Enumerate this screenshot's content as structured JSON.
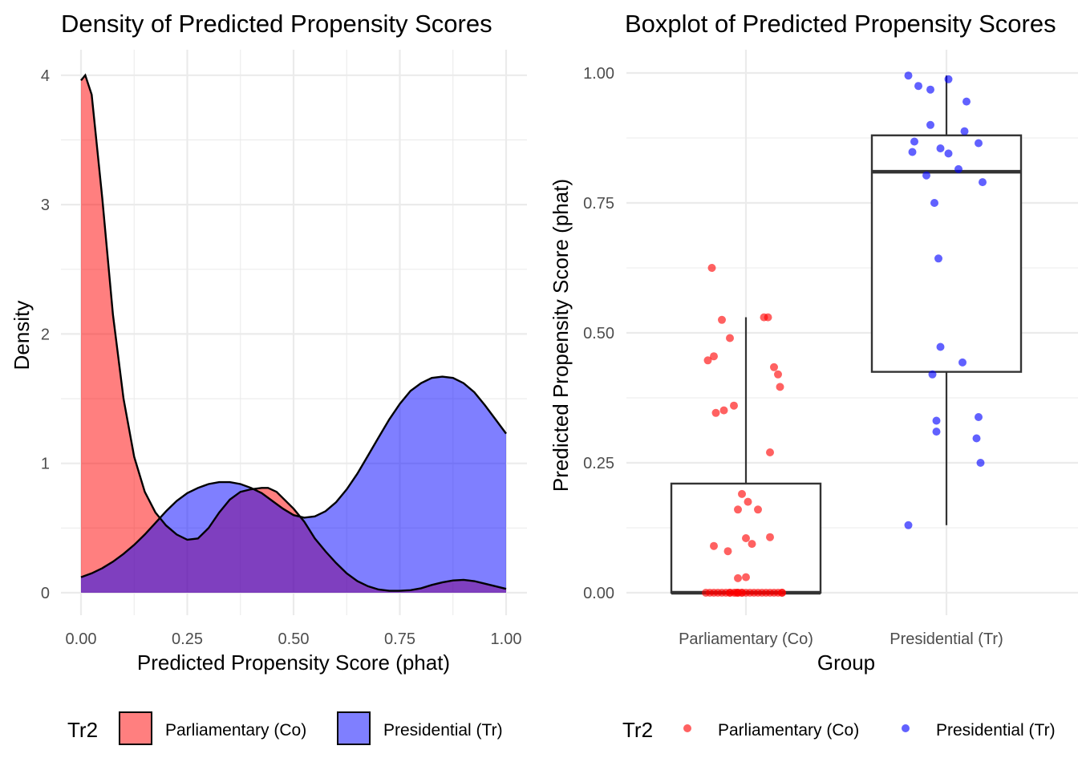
{
  "chart_data": [
    {
      "type": "area",
      "title": "Density of Predicted Propensity Scores",
      "xlabel": "Predicted Propensity Score (phat)",
      "ylabel": "Density",
      "xlim": [
        0,
        1
      ],
      "ylim": [
        0,
        4.1
      ],
      "xticks": [
        "0.00",
        "0.25",
        "0.50",
        "0.75",
        "1.00"
      ],
      "yticks": [
        "0",
        "1",
        "2",
        "3",
        "4"
      ],
      "grid": true,
      "legend": {
        "title": "Tr2",
        "position": "bottom",
        "entries": [
          "Parliamentary (Co)",
          "Presidential (Tr)"
        ]
      },
      "series": [
        {
          "name": "Parliamentary (Co)",
          "color": "#ff0000",
          "opacity": 0.5,
          "x": [
            0,
            0.01,
            0.025,
            0.05,
            0.075,
            0.1,
            0.125,
            0.15,
            0.175,
            0.2,
            0.225,
            0.25,
            0.275,
            0.3,
            0.325,
            0.35,
            0.375,
            0.4,
            0.425,
            0.44,
            0.46,
            0.5,
            0.525,
            0.55,
            0.575,
            0.6,
            0.625,
            0.65,
            0.675,
            0.7,
            0.725,
            0.75,
            0.775,
            0.8,
            0.825,
            0.85,
            0.875,
            0.9,
            0.925,
            0.95,
            0.975,
            1.0
          ],
          "y": [
            3.96,
            4.0,
            3.85,
            3.05,
            2.15,
            1.5,
            1.05,
            0.78,
            0.62,
            0.52,
            0.45,
            0.41,
            0.42,
            0.5,
            0.62,
            0.72,
            0.78,
            0.8,
            0.81,
            0.81,
            0.78,
            0.65,
            0.55,
            0.42,
            0.32,
            0.23,
            0.15,
            0.09,
            0.05,
            0.025,
            0.015,
            0.015,
            0.02,
            0.035,
            0.06,
            0.08,
            0.095,
            0.1,
            0.09,
            0.07,
            0.05,
            0.03
          ]
        },
        {
          "name": "Presidential (Tr)",
          "color": "#0000ff",
          "opacity": 0.5,
          "x": [
            0,
            0.025,
            0.05,
            0.075,
            0.1,
            0.125,
            0.15,
            0.175,
            0.2,
            0.225,
            0.25,
            0.275,
            0.3,
            0.325,
            0.35,
            0.375,
            0.4,
            0.425,
            0.45,
            0.475,
            0.5,
            0.525,
            0.55,
            0.575,
            0.6,
            0.625,
            0.65,
            0.675,
            0.7,
            0.725,
            0.75,
            0.775,
            0.8,
            0.825,
            0.85,
            0.875,
            0.9,
            0.925,
            0.95,
            0.975,
            1.0
          ],
          "y": [
            0.12,
            0.15,
            0.19,
            0.24,
            0.3,
            0.37,
            0.45,
            0.54,
            0.63,
            0.71,
            0.77,
            0.81,
            0.84,
            0.855,
            0.855,
            0.84,
            0.81,
            0.77,
            0.71,
            0.65,
            0.6,
            0.58,
            0.59,
            0.63,
            0.7,
            0.8,
            0.92,
            1.06,
            1.2,
            1.34,
            1.46,
            1.56,
            1.62,
            1.66,
            1.67,
            1.66,
            1.62,
            1.55,
            1.45,
            1.34,
            1.23
          ]
        }
      ]
    },
    {
      "type": "box",
      "title": "Boxplot of Predicted Propensity Scores",
      "xlabel": "Group",
      "ylabel": "Predicted Propensity Score (phat)",
      "ylim": [
        0,
        1.0
      ],
      "yticks": [
        "0.00",
        "0.25",
        "0.50",
        "0.75",
        "1.00"
      ],
      "categories": [
        "Parliamentary (Co)",
        "Presidential (Tr)"
      ],
      "grid": true,
      "legend": {
        "title": "Tr2",
        "position": "bottom",
        "entries": [
          "Parliamentary (Co)",
          "Presidential (Tr)"
        ]
      },
      "boxes": [
        {
          "category": "Parliamentary (Co)",
          "lower_whisker": 0.0,
          "q1": 0.0,
          "median": 0.0,
          "q3": 0.21,
          "upper_whisker": 0.53
        },
        {
          "category": "Presidential (Tr)",
          "lower_whisker": 0.13,
          "q1": 0.425,
          "median": 0.81,
          "q3": 0.88,
          "upper_whisker": 0.995
        }
      ],
      "points": [
        {
          "name": "Parliamentary (Co)",
          "color": "#ff0000",
          "x_offset": [
            -0.2,
            -0.18,
            -0.16,
            -0.14,
            -0.12,
            -0.1,
            -0.08,
            -0.06,
            -0.04,
            -0.02,
            0.0,
            0.02,
            0.04,
            0.06,
            0.08,
            0.1,
            0.12,
            0.14,
            0.16,
            0.18,
            -0.17,
            -0.12,
            0.11,
            0.09,
            -0.08,
            -0.19,
            0.14,
            -0.16,
            0.16,
            0.17,
            -0.06,
            -0.15,
            -0.11,
            0.12,
            -0.02,
            0.01,
            -0.04,
            0.06,
            0.12,
            0.0,
            0.03,
            -0.16,
            -0.09,
            0.0,
            -0.04,
            0.18,
            -0.08,
            -0.02,
            -0.05,
            -0.04
          ],
          "y": [
            0,
            0,
            0,
            0,
            0,
            0,
            0,
            0,
            0,
            0,
            0,
            0,
            0,
            0,
            0,
            0,
            0,
            0,
            0,
            0,
            0.625,
            0.525,
            0.53,
            0.53,
            0.49,
            0.447,
            0.434,
            0.455,
            0.42,
            0.396,
            0.36,
            0.346,
            0.351,
            0.27,
            0.19,
            0.175,
            0.16,
            0.16,
            0.107,
            0.105,
            0.094,
            0.09,
            0.08,
            0.03,
            0.028,
            0.0,
            0.0,
            0.0,
            0.0,
            0.0
          ]
        },
        {
          "name": "Presidential (Tr)",
          "color": "#0000ff",
          "x_offset": [
            -0.19,
            -0.14,
            -0.08,
            0.01,
            0.1,
            -0.08,
            0.09,
            -0.16,
            0.16,
            -0.17,
            -0.03,
            0.01,
            0.06,
            -0.1,
            0.18,
            -0.06,
            -0.04,
            -0.03,
            0.08,
            -0.07,
            -0.05,
            0.16,
            -0.05,
            0.15,
            0.17,
            -0.19
          ],
          "y": [
            0.995,
            0.975,
            0.968,
            0.988,
            0.945,
            0.9,
            0.888,
            0.868,
            0.865,
            0.848,
            0.855,
            0.845,
            0.815,
            0.803,
            0.79,
            0.75,
            0.643,
            0.473,
            0.443,
            0.42,
            0.331,
            0.338,
            0.31,
            0.297,
            0.25,
            0.13
          ]
        }
      ]
    }
  ]
}
